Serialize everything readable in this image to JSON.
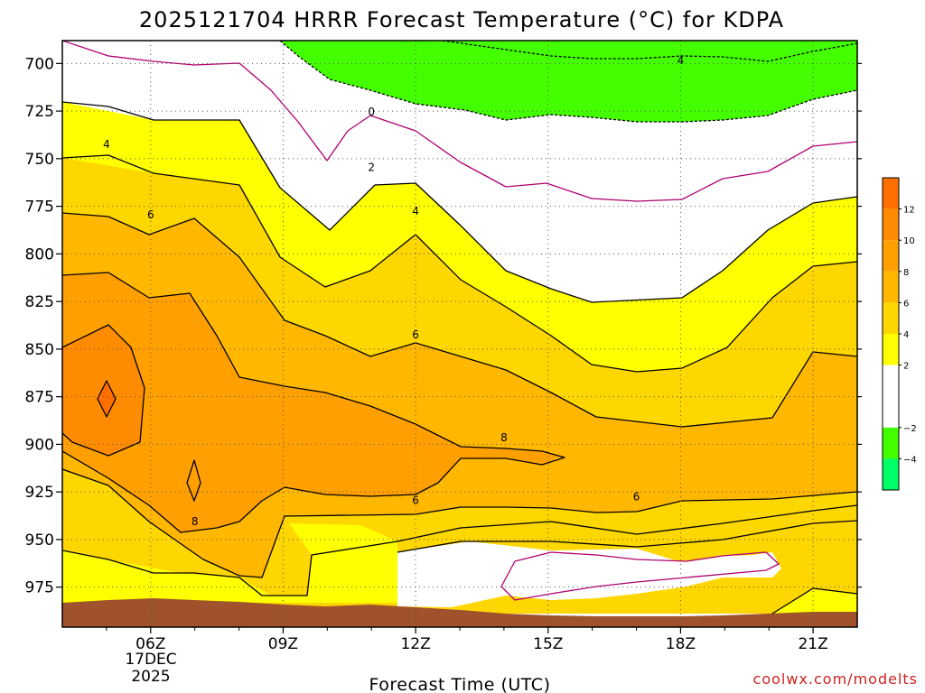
{
  "chart_data": {
    "type": "contour",
    "title": "2025121704 HRRR Forecast Temperature (°C) for KDPA",
    "xlabel": "Forecast Time (UTC)",
    "ylabel": "",
    "credit": "coolwx.com/modelts",
    "x_ticks": [
      "06Z",
      "09Z",
      "12Z",
      "15Z",
      "18Z",
      "21Z"
    ],
    "x_tick_hours": [
      6,
      9,
      12,
      15,
      18,
      21
    ],
    "x_date_lines": [
      "17DEC",
      "2025"
    ],
    "xlim": [
      4,
      22
    ],
    "y_ticks": [
      700,
      725,
      750,
      775,
      800,
      825,
      850,
      875,
      900,
      925,
      950,
      975
    ],
    "ylim": [
      688,
      996
    ],
    "y_scale": "pressure (hPa), increasing downward",
    "grid": true,
    "colorbar": {
      "placement": "right",
      "labels": [
        "12",
        "10",
        "8",
        "6",
        "4",
        "2",
        "−2",
        "−4"
      ],
      "bands": [
        {
          "from": 12,
          "to": 14,
          "color": "#ff6f00"
        },
        {
          "from": 10,
          "to": 12,
          "color": "#ff8c00"
        },
        {
          "from": 8,
          "to": 10,
          "color": "#ffa000"
        },
        {
          "from": 6,
          "to": 8,
          "color": "#ffb700"
        },
        {
          "from": 4,
          "to": 6,
          "color": "#ffd700"
        },
        {
          "from": 2,
          "to": 4,
          "color": "#ffff00"
        },
        {
          "from": -2,
          "to": 2,
          "color": "#ffffff"
        },
        {
          "from": -4,
          "to": -2,
          "color": "#44ff00"
        },
        {
          "from": -6,
          "to": -4,
          "color": "#00ff66"
        }
      ]
    },
    "contour_labels": [
      {
        "text": "4",
        "x": 18.0,
        "y": 698
      },
      {
        "text": "0",
        "x": 11.0,
        "y": 725
      },
      {
        "text": "2",
        "x": 11.0,
        "y": 754
      },
      {
        "text": "4",
        "x": 5.0,
        "y": 742
      },
      {
        "text": "4",
        "x": 12.0,
        "y": 777
      },
      {
        "text": "6",
        "x": 6.0,
        "y": 779
      },
      {
        "text": "6",
        "x": 12.0,
        "y": 842
      },
      {
        "text": "8",
        "x": 14.0,
        "y": 896
      },
      {
        "text": "8",
        "x": 7.0,
        "y": 940
      },
      {
        "text": "6",
        "x": 12.0,
        "y": 929
      },
      {
        "text": "6",
        "x": 17.0,
        "y": 927
      }
    ],
    "terrain_color": "#a0522d"
  }
}
